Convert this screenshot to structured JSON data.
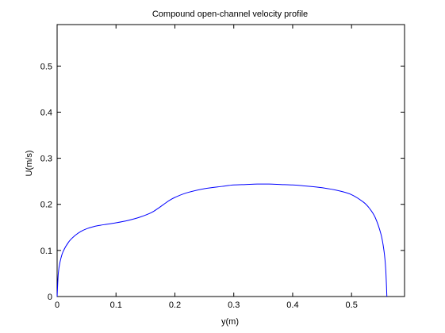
{
  "chart_data": {
    "type": "line",
    "title": "Compound open-channel velocity profile",
    "xlabel": "y(m)",
    "ylabel": "U(m/s)",
    "xlim": [
      0,
      0.59
    ],
    "ylim": [
      0,
      0.59
    ],
    "xticks": [
      0,
      0.1,
      0.2,
      0.3,
      0.4,
      0.5
    ],
    "yticks": [
      0,
      0.1,
      0.2,
      0.3,
      0.4,
      0.5
    ],
    "grid": false,
    "series": [
      {
        "color": "#0000ff",
        "x": [
          0.0,
          0.002,
          0.005,
          0.01,
          0.02,
          0.03,
          0.04,
          0.05,
          0.06,
          0.07,
          0.08,
          0.1,
          0.12,
          0.14,
          0.16,
          0.17,
          0.18,
          0.19,
          0.2,
          0.22,
          0.25,
          0.28,
          0.3,
          0.32,
          0.34,
          0.36,
          0.38,
          0.4,
          0.42,
          0.45,
          0.48,
          0.5,
          0.52,
          0.53,
          0.54,
          0.55,
          0.555,
          0.558,
          0.56
        ],
        "y": [
          0.0,
          0.05,
          0.075,
          0.097,
          0.119,
          0.132,
          0.141,
          0.147,
          0.151,
          0.154,
          0.156,
          0.16,
          0.165,
          0.172,
          0.182,
          0.19,
          0.199,
          0.208,
          0.215,
          0.225,
          0.234,
          0.239,
          0.242,
          0.243,
          0.244,
          0.244,
          0.243,
          0.242,
          0.24,
          0.236,
          0.229,
          0.221,
          0.205,
          0.192,
          0.172,
          0.135,
          0.1,
          0.06,
          0.0
        ]
      }
    ]
  }
}
